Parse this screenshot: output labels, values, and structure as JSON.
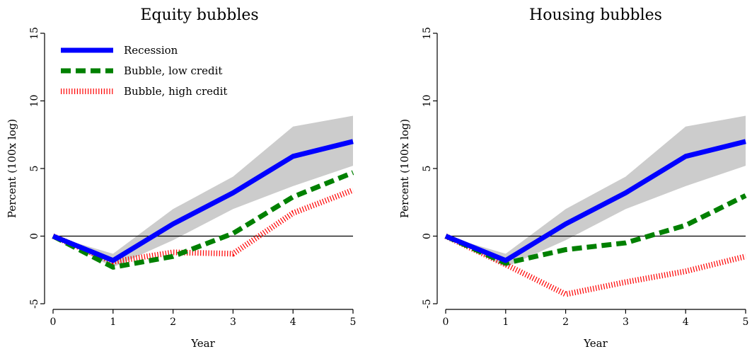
{
  "chart_data": [
    {
      "type": "line",
      "title": "Equity bubbles",
      "xlabel": "Year",
      "ylabel": "Percent (100x log)",
      "xlim": [
        0,
        5
      ],
      "ylim": [
        -5,
        15
      ],
      "x_ticks": [
        "0",
        "1",
        "2",
        "3",
        "4",
        "5"
      ],
      "y_ticks": [
        "-5",
        "0",
        "5",
        "10",
        "15"
      ],
      "reference_line": 0,
      "legend_position": "top-left",
      "x": [
        0,
        1,
        2,
        3,
        4,
        5
      ],
      "series": [
        {
          "name": "Recession",
          "values": [
            0,
            -1.8,
            0.9,
            3.2,
            5.9,
            7.0
          ],
          "color": "#0000ff",
          "style": "solid",
          "band": {
            "lower": [
              0,
              -2.3,
              -0.3,
              2.0,
              3.7,
              5.2
            ],
            "upper": [
              0,
              -1.3,
              2.0,
              4.4,
              8.1,
              8.9
            ],
            "color": "#cccccc"
          }
        },
        {
          "name": "Bubble, low credit",
          "values": [
            0,
            -2.3,
            -1.5,
            0.2,
            2.9,
            4.7
          ],
          "color": "#008000",
          "style": "dashed"
        },
        {
          "name": "Bubble, high credit",
          "values": [
            0,
            -1.9,
            -1.2,
            -1.3,
            1.7,
            3.4
          ],
          "color": "#ff0000",
          "style": "dotted"
        }
      ]
    },
    {
      "type": "line",
      "title": "Housing bubbles",
      "xlabel": "Year",
      "ylabel": "Percent (100x log)",
      "xlim": [
        0,
        5
      ],
      "ylim": [
        -5,
        15
      ],
      "x_ticks": [
        "0",
        "1",
        "2",
        "3",
        "4",
        "5"
      ],
      "y_ticks": [
        "-5",
        "0",
        "5",
        "10",
        "15"
      ],
      "reference_line": 0,
      "x": [
        0,
        1,
        2,
        3,
        4,
        5
      ],
      "series": [
        {
          "name": "Recession",
          "values": [
            0,
            -1.8,
            0.9,
            3.2,
            5.9,
            7.0
          ],
          "color": "#0000ff",
          "style": "solid",
          "band": {
            "lower": [
              0,
              -2.3,
              -0.3,
              2.0,
              3.7,
              5.2
            ],
            "upper": [
              0,
              -1.3,
              2.0,
              4.4,
              8.1,
              8.9
            ],
            "color": "#cccccc"
          }
        },
        {
          "name": "Bubble, low credit",
          "values": [
            0,
            -2.0,
            -1.0,
            -0.5,
            0.8,
            3.0
          ],
          "color": "#008000",
          "style": "dashed"
        },
        {
          "name": "Bubble, high credit",
          "values": [
            0,
            -2.1,
            -4.3,
            -3.4,
            -2.6,
            -1.5
          ],
          "color": "#ff0000",
          "style": "dotted"
        }
      ]
    }
  ]
}
